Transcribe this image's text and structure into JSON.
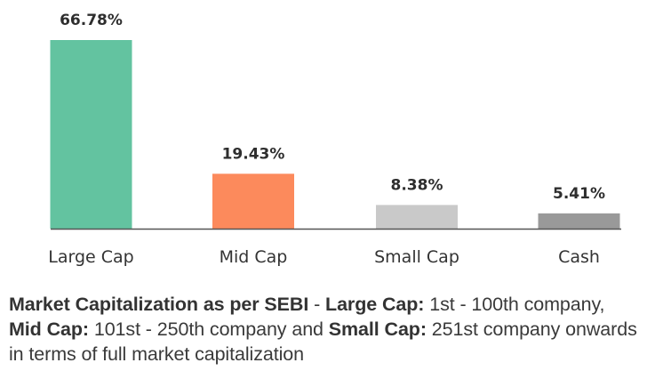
{
  "chart_data": {
    "type": "bar",
    "title": "",
    "xlabel": "",
    "ylabel": "",
    "categories": [
      "Large Cap",
      "Mid Cap",
      "Small Cap",
      "Cash"
    ],
    "values": [
      66.78,
      19.43,
      8.38,
      5.41
    ],
    "data_labels": [
      "66.78%",
      "19.43%",
      "8.38%",
      "5.41%"
    ],
    "colors": [
      "#63c3a0",
      "#fc8a5c",
      "#c9c9c9",
      "#999999"
    ],
    "ylim": [
      0,
      66.78
    ],
    "grid": false,
    "legend": "none",
    "unit": "%"
  },
  "footnote": {
    "segments": [
      {
        "text": "Market Capitalization as per SEBI",
        "bold": true
      },
      {
        "text": " - ",
        "bold": false
      },
      {
        "text": "Large Cap:",
        "bold": true
      },
      {
        "text": " 1st - 100th company, ",
        "bold": false
      },
      {
        "text": "Mid Cap:",
        "bold": true
      },
      {
        "text": " 101st - 250th company and ",
        "bold": false
      },
      {
        "text": "Small Cap:",
        "bold": true
      },
      {
        "text": " 251st company onwards in terms of full market capitalization",
        "bold": false
      }
    ]
  }
}
